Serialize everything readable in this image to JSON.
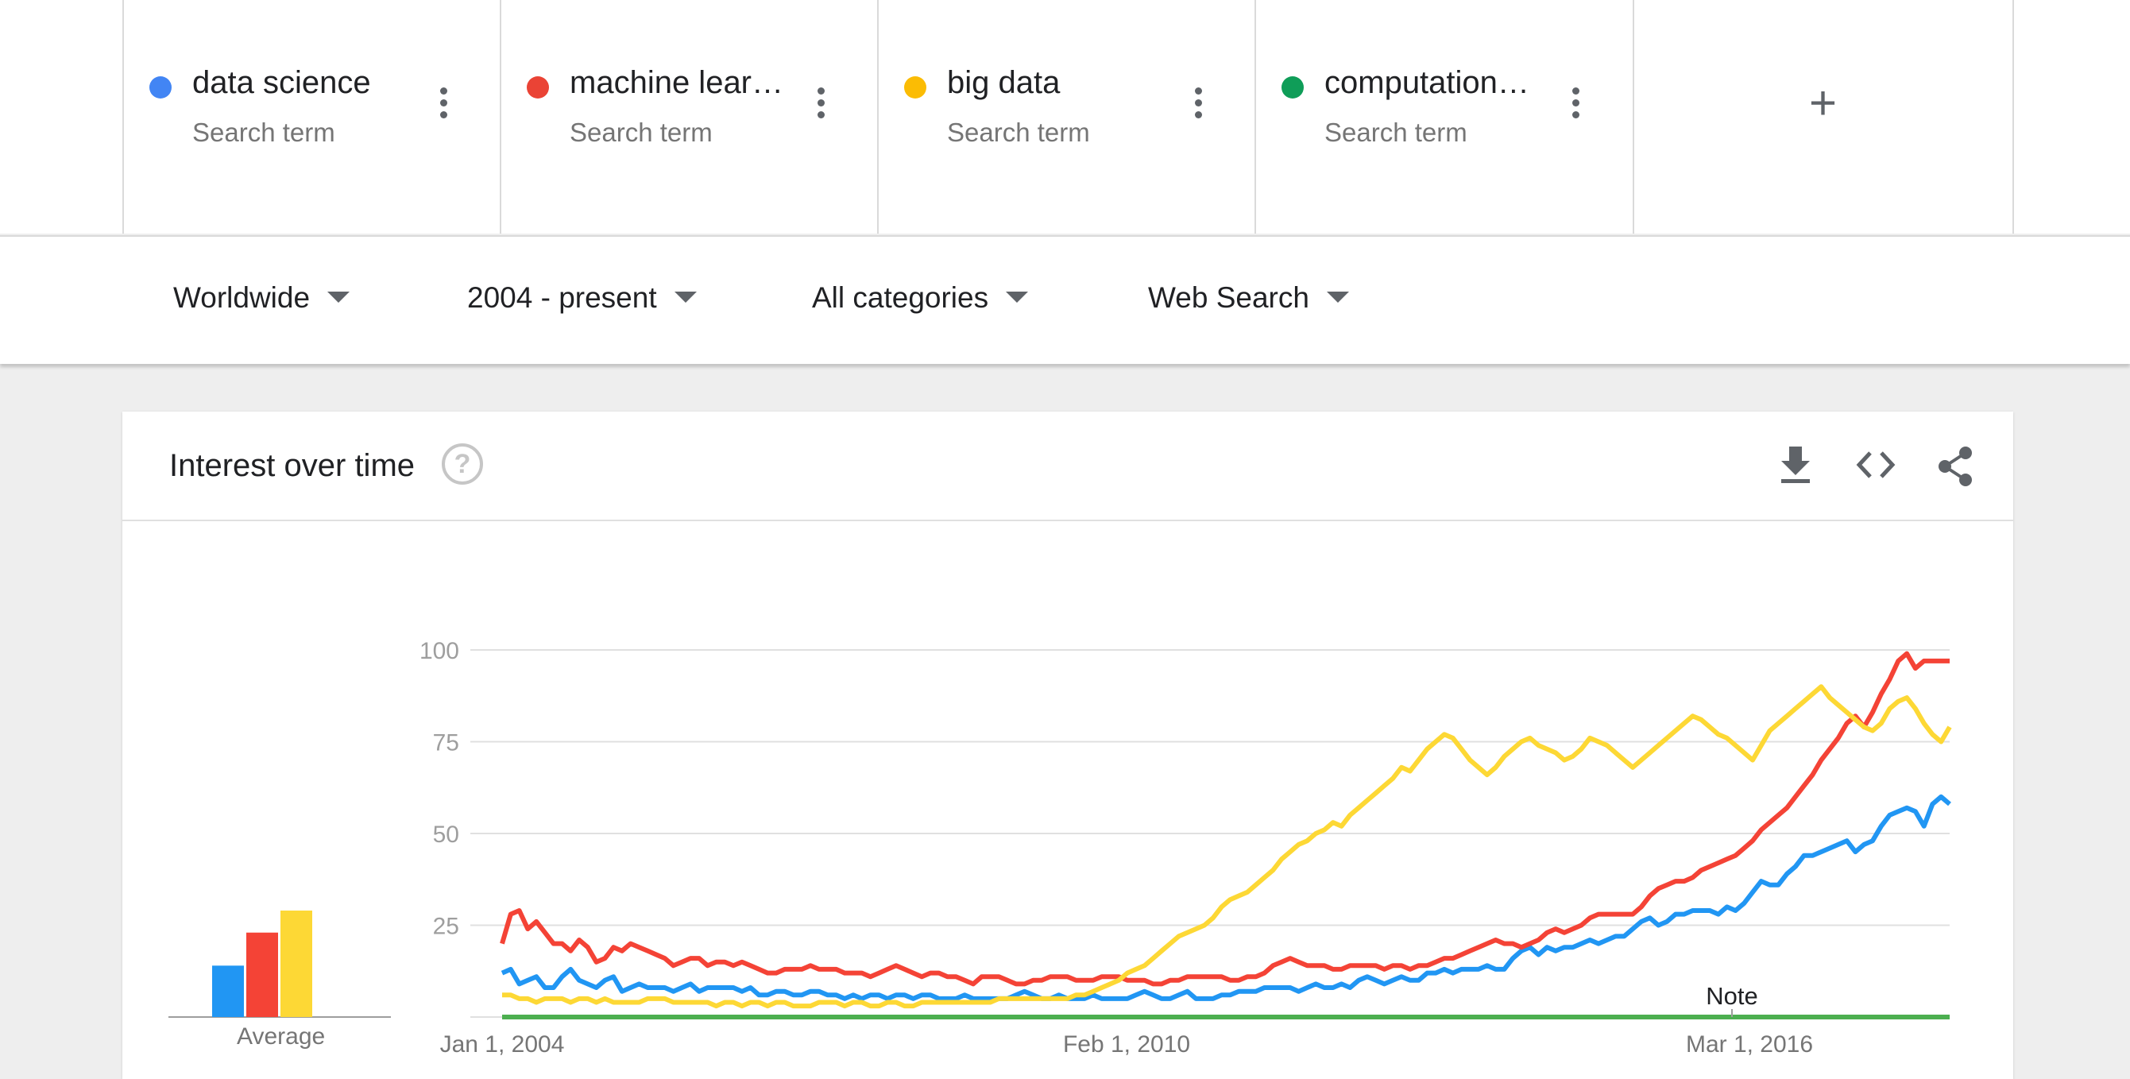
{
  "terms": [
    {
      "name": "data science",
      "sub": "Search term",
      "color": "#4285f4"
    },
    {
      "name": "machine lear…",
      "sub": "Search term",
      "color": "#ea4335"
    },
    {
      "name": "big data",
      "sub": "Search term",
      "color": "#fbbc04"
    },
    {
      "name": "computation…",
      "sub": "Search term",
      "color": "#0f9d58"
    }
  ],
  "add_term_icon": "plus-icon",
  "filters": {
    "region": "Worldwide",
    "time": "2004 - present",
    "category": "All categories",
    "property": "Web Search"
  },
  "card": {
    "title": "Interest over time",
    "help_icon": "?",
    "icons": [
      "download-icon",
      "embed-icon",
      "share-icon"
    ]
  },
  "chart_data": {
    "type": "line",
    "x_ticks": [
      "Jan 1, 2004",
      "Feb 1, 2010",
      "Mar 1, 2016"
    ],
    "y_ticks": [
      25,
      50,
      75,
      100
    ],
    "ylim": [
      0,
      100
    ],
    "note_label": "Note",
    "average_label": "Average",
    "average": [
      {
        "color": "#2196f3",
        "value": 14
      },
      {
        "color": "#f44336",
        "value": 23
      },
      {
        "color": "#fdd835",
        "value": 29
      }
    ],
    "series": [
      {
        "color": "#2196f3",
        "values": [
          12,
          13,
          9,
          10,
          11,
          8,
          8,
          11,
          13,
          10,
          9,
          8,
          10,
          11,
          7,
          8,
          9,
          8,
          8,
          8,
          7,
          8,
          9,
          7,
          8,
          8,
          8,
          8,
          7,
          8,
          6,
          6,
          7,
          7,
          6,
          6,
          7,
          7,
          6,
          6,
          5,
          6,
          5,
          6,
          6,
          5,
          6,
          6,
          5,
          6,
          6,
          5,
          5,
          5,
          6,
          5,
          5,
          5,
          5,
          5,
          6,
          7,
          6,
          5,
          5,
          6,
          5,
          5,
          5,
          6,
          5,
          5,
          5,
          5,
          6,
          7,
          6,
          5,
          5,
          6,
          7,
          5,
          5,
          5,
          6,
          6,
          7,
          7,
          7,
          8,
          8,
          8,
          8,
          7,
          8,
          9,
          8,
          8,
          9,
          8,
          10,
          11,
          10,
          9,
          10,
          11,
          10,
          10,
          12,
          12,
          13,
          12,
          13,
          13,
          13,
          14,
          13,
          13,
          16,
          18,
          19,
          17,
          19,
          18,
          19,
          19,
          20,
          21,
          20,
          21,
          22,
          22,
          24,
          26,
          27,
          25,
          26,
          28,
          28,
          29,
          29,
          29,
          28,
          30,
          29,
          31,
          34,
          37,
          36,
          36,
          39,
          41,
          44,
          44,
          45,
          46,
          47,
          48,
          45,
          47,
          48,
          52,
          55,
          56,
          57,
          56,
          52,
          58,
          60,
          58
        ],
        "name": ""
      },
      {
        "color": "#f44336",
        "values": [
          20,
          28,
          29,
          24,
          26,
          23,
          20,
          20,
          18,
          21,
          19,
          15,
          16,
          19,
          18,
          20,
          19,
          18,
          17,
          16,
          14,
          15,
          16,
          16,
          14,
          15,
          15,
          14,
          15,
          14,
          13,
          12,
          12,
          13,
          13,
          13,
          14,
          13,
          13,
          13,
          12,
          12,
          12,
          11,
          12,
          13,
          14,
          13,
          12,
          11,
          12,
          12,
          11,
          11,
          10,
          9,
          11,
          11,
          11,
          10,
          9,
          9,
          10,
          10,
          11,
          11,
          11,
          10,
          10,
          10,
          11,
          11,
          11,
          10,
          10,
          10,
          9,
          9,
          10,
          10,
          11,
          11,
          11,
          11,
          11,
          10,
          10,
          11,
          11,
          12,
          14,
          15,
          16,
          15,
          14,
          14,
          14,
          13,
          13,
          14,
          14,
          14,
          14,
          13,
          14,
          14,
          13,
          14,
          14,
          15,
          16,
          16,
          17,
          18,
          19,
          20,
          21,
          20,
          20,
          19,
          20,
          21,
          23,
          24,
          23,
          24,
          25,
          27,
          28,
          28,
          28,
          28,
          28,
          30,
          33,
          35,
          36,
          37,
          37,
          38,
          40,
          41,
          42,
          43,
          44,
          46,
          48,
          51,
          53,
          55,
          57,
          60,
          63,
          66,
          70,
          73,
          76,
          80,
          82,
          79,
          83,
          88,
          92,
          97,
          99,
          95,
          97,
          97,
          97,
          97
        ],
        "name": ""
      },
      {
        "color": "#fdd835",
        "values": [
          6,
          6,
          5,
          5,
          4,
          5,
          5,
          5,
          4,
          5,
          5,
          4,
          5,
          4,
          4,
          4,
          4,
          5,
          5,
          5,
          4,
          4,
          4,
          4,
          4,
          3,
          4,
          4,
          3,
          4,
          4,
          3,
          4,
          4,
          3,
          3,
          3,
          4,
          4,
          4,
          3,
          4,
          4,
          3,
          3,
          4,
          4,
          3,
          3,
          4,
          4,
          4,
          4,
          4,
          4,
          4,
          4,
          4,
          5,
          5,
          5,
          5,
          5,
          5,
          5,
          5,
          5,
          6,
          6,
          7,
          8,
          9,
          10,
          12,
          13,
          14,
          16,
          18,
          20,
          22,
          23,
          24,
          25,
          27,
          30,
          32,
          33,
          34,
          36,
          38,
          40,
          43,
          45,
          47,
          48,
          50,
          51,
          53,
          52,
          55,
          57,
          59,
          61,
          63,
          65,
          68,
          67,
          70,
          73,
          75,
          77,
          76,
          73,
          70,
          68,
          66,
          68,
          71,
          73,
          75,
          76,
          74,
          73,
          72,
          70,
          71,
          73,
          76,
          75,
          74,
          72,
          70,
          68,
          70,
          72,
          74,
          76,
          78,
          80,
          82,
          81,
          79,
          77,
          76,
          74,
          72,
          70,
          74,
          78,
          80,
          82,
          84,
          86,
          88,
          90,
          87,
          85,
          83,
          81,
          79,
          78,
          80,
          84,
          86,
          87,
          84,
          80,
          77,
          75,
          79
        ],
        "name": ""
      },
      {
        "color": "#4caf50",
        "values": [
          0,
          0,
          0,
          0,
          0,
          0,
          0,
          0,
          0,
          0,
          0,
          0,
          0,
          0,
          0,
          0,
          0,
          0,
          0,
          0,
          0,
          0,
          0,
          0,
          0,
          0,
          0,
          0,
          0,
          0,
          0,
          0,
          0,
          0,
          0,
          0,
          0,
          0,
          0,
          0,
          0,
          0,
          0,
          0,
          0,
          0,
          0,
          0,
          0,
          0,
          0,
          0,
          0,
          0,
          0,
          0,
          0,
          0,
          0,
          0,
          0,
          0,
          0,
          0,
          0,
          0,
          0,
          0,
          0,
          0,
          0,
          0,
          0,
          0,
          0,
          0,
          0,
          0,
          0,
          0,
          0,
          0,
          0,
          0,
          0,
          0,
          0,
          0,
          0,
          0,
          0,
          0,
          0,
          0,
          0,
          0,
          0,
          0,
          0,
          0,
          0,
          0,
          0,
          0,
          0,
          0,
          0,
          0,
          0,
          0,
          0,
          0,
          0,
          0,
          0,
          0,
          0,
          0,
          0,
          0,
          0,
          0,
          0,
          0,
          0,
          0,
          0,
          0,
          0,
          0,
          0,
          0,
          0,
          0,
          0,
          0,
          0,
          0,
          0,
          0,
          0,
          0,
          0,
          0,
          0,
          0,
          0,
          0,
          0,
          0,
          0,
          0,
          0,
          0,
          0,
          0,
          0,
          0,
          0,
          0,
          0,
          0,
          0,
          0,
          0,
          0,
          0,
          0,
          0,
          0
        ],
        "name": ""
      }
    ]
  }
}
